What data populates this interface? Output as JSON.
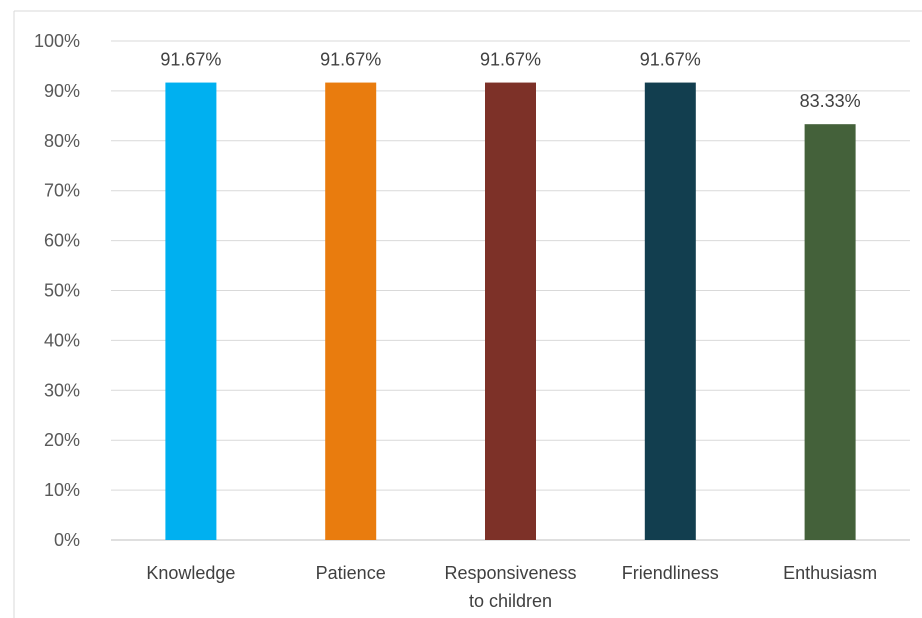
{
  "chart_data": {
    "type": "bar",
    "categories": [
      "Knowledge",
      "Patience",
      "Responsiveness to children",
      "Friendliness",
      "Enthusiasm"
    ],
    "category_lines": [
      [
        "Knowledge"
      ],
      [
        "Patience"
      ],
      [
        "Responsiveness",
        "to children"
      ],
      [
        "Friendliness"
      ],
      [
        "Enthusiasm"
      ]
    ],
    "values": [
      91.67,
      91.67,
      91.67,
      91.67,
      83.33
    ],
    "data_labels": [
      "91.67%",
      "91.67%",
      "91.67%",
      "91.67%",
      "83.33%"
    ],
    "colors": [
      "#00B0F0",
      "#E97C0E",
      "#7D3128",
      "#123E4F",
      "#44613A"
    ],
    "ylim": [
      0,
      100
    ],
    "yticks": [
      0,
      10,
      20,
      30,
      40,
      50,
      60,
      70,
      80,
      90,
      100
    ],
    "ytick_labels": [
      "0%",
      "10%",
      "20%",
      "30%",
      "40%",
      "50%",
      "60%",
      "70%",
      "80%",
      "90%",
      "100%"
    ],
    "grid": true,
    "legend": "none",
    "title": "",
    "xlabel": "",
    "ylabel": ""
  }
}
